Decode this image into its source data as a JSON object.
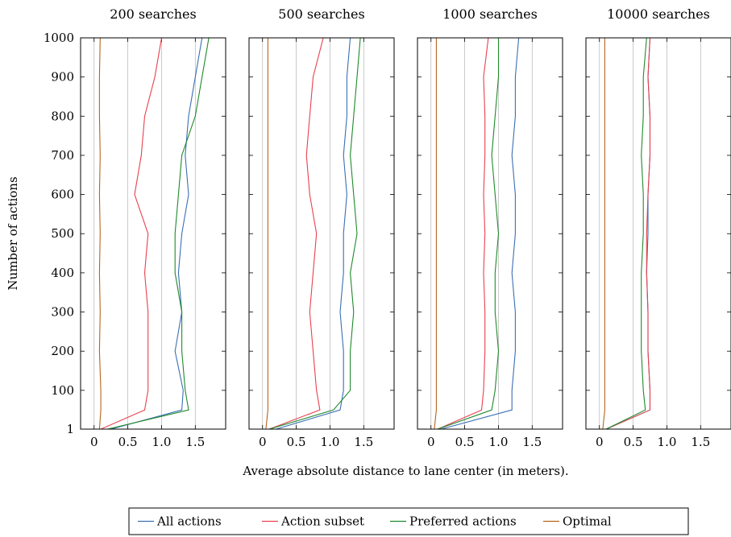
{
  "chart_data": {
    "type": "line",
    "xlabel": "Average absolute distance to lane center (in meters).",
    "ylabel": "Number of actions",
    "xlim": [
      -0.2,
      1.95
    ],
    "ylim": [
      1,
      1000
    ],
    "x_ticks": [
      0,
      0.5,
      1.0,
      1.5
    ],
    "x_tick_labels": [
      "0",
      "0.5",
      "1.0",
      "1.5"
    ],
    "y_ticks": [
      1,
      100,
      200,
      300,
      400,
      500,
      600,
      700,
      800,
      900,
      1000
    ],
    "y_tick_labels": [
      "1",
      "100",
      "200",
      "300",
      "400",
      "500",
      "600",
      "700",
      "800",
      "900",
      "1000"
    ],
    "grid": "vertical",
    "legend_position": "bottom-center",
    "series_info": [
      {
        "name": "All actions",
        "color": "#3b6fb5"
      },
      {
        "name": "Action subset",
        "color": "#e8414f"
      },
      {
        "name": "Preferred actions",
        "color": "#1f8a2c"
      },
      {
        "name": "Optimal",
        "color": "#b5651d"
      }
    ],
    "panels": [
      {
        "title": "200 searches",
        "series": [
          {
            "name": "All actions",
            "y": [
              1,
              50,
              100,
              200,
              300,
              400,
              500,
              600,
              700,
              800,
              900,
              1000
            ],
            "x": [
              0.25,
              1.3,
              1.32,
              1.2,
              1.3,
              1.25,
              1.3,
              1.4,
              1.35,
              1.4,
              1.5,
              1.6
            ]
          },
          {
            "name": "Action subset",
            "y": [
              1,
              50,
              100,
              200,
              300,
              400,
              500,
              600,
              700,
              800,
              900,
              1000
            ],
            "x": [
              0.1,
              0.75,
              0.8,
              0.8,
              0.8,
              0.75,
              0.8,
              0.6,
              0.7,
              0.75,
              0.9,
              1.0
            ]
          },
          {
            "name": "Preferred actions",
            "y": [
              1,
              50,
              100,
              200,
              300,
              400,
              500,
              600,
              700,
              800,
              900,
              1000
            ],
            "x": [
              0.2,
              1.4,
              1.35,
              1.3,
              1.3,
              1.2,
              1.2,
              1.25,
              1.3,
              1.5,
              1.6,
              1.7
            ]
          },
          {
            "name": "Optimal",
            "y": [
              1,
              50,
              100,
              200,
              300,
              400,
              500,
              600,
              700,
              800,
              900,
              1000
            ],
            "x": [
              0.08,
              0.1,
              0.1,
              0.08,
              0.09,
              0.08,
              0.09,
              0.08,
              0.09,
              0.08,
              0.08,
              0.09
            ]
          }
        ]
      },
      {
        "title": "500 searches",
        "series": [
          {
            "name": "All actions",
            "y": [
              1,
              50,
              100,
              200,
              300,
              400,
              500,
              600,
              700,
              800,
              900,
              1000
            ],
            "x": [
              0.2,
              1.15,
              1.2,
              1.2,
              1.15,
              1.2,
              1.2,
              1.25,
              1.2,
              1.25,
              1.25,
              1.3
            ]
          },
          {
            "name": "Action subset",
            "y": [
              1,
              50,
              100,
              200,
              300,
              400,
              500,
              600,
              700,
              800,
              900,
              1000
            ],
            "x": [
              0.1,
              0.85,
              0.8,
              0.75,
              0.7,
              0.75,
              0.8,
              0.7,
              0.65,
              0.7,
              0.75,
              0.9
            ]
          },
          {
            "name": "Preferred actions",
            "y": [
              1,
              50,
              100,
              200,
              300,
              400,
              500,
              600,
              700,
              800,
              900,
              1000
            ],
            "x": [
              0.1,
              1.05,
              1.3,
              1.3,
              1.35,
              1.3,
              1.4,
              1.35,
              1.3,
              1.35,
              1.4,
              1.45
            ]
          },
          {
            "name": "Optimal",
            "y": [
              1,
              50,
              100,
              200,
              300,
              400,
              500,
              600,
              700,
              800,
              900,
              1000
            ],
            "x": [
              0.05,
              0.08,
              0.08,
              0.08,
              0.08,
              0.08,
              0.08,
              0.08,
              0.08,
              0.08,
              0.08,
              0.08
            ]
          }
        ]
      },
      {
        "title": "1000 searches",
        "series": [
          {
            "name": "All actions",
            "y": [
              1,
              50,
              100,
              200,
              300,
              400,
              500,
              600,
              700,
              800,
              900,
              1000
            ],
            "x": [
              0.15,
              1.2,
              1.2,
              1.25,
              1.25,
              1.2,
              1.25,
              1.25,
              1.2,
              1.25,
              1.25,
              1.3
            ]
          },
          {
            "name": "Action subset",
            "y": [
              1,
              50,
              100,
              200,
              300,
              400,
              500,
              600,
              700,
              800,
              900,
              1000
            ],
            "x": [
              0.1,
              0.75,
              0.78,
              0.8,
              0.8,
              0.78,
              0.8,
              0.78,
              0.8,
              0.8,
              0.78,
              0.85
            ]
          },
          {
            "name": "Preferred actions",
            "y": [
              1,
              50,
              100,
              200,
              300,
              400,
              500,
              600,
              700,
              800,
              900,
              1000
            ],
            "x": [
              0.1,
              0.9,
              0.95,
              1.0,
              0.95,
              0.95,
              1.0,
              0.95,
              0.9,
              0.95,
              1.0,
              1.0
            ]
          },
          {
            "name": "Optimal",
            "y": [
              1,
              50,
              100,
              200,
              300,
              400,
              500,
              600,
              700,
              800,
              900,
              1000
            ],
            "x": [
              0.05,
              0.08,
              0.08,
              0.08,
              0.08,
              0.08,
              0.08,
              0.08,
              0.08,
              0.08,
              0.08,
              0.08
            ]
          }
        ]
      },
      {
        "title": "10000 searches",
        "series": [
          {
            "name": "All actions",
            "y": [
              1,
              50,
              100,
              200,
              300,
              400,
              500,
              600,
              700,
              800,
              900,
              1000
            ],
            "x": [
              0.1,
              0.75,
              0.75,
              0.72,
              0.72,
              0.7,
              0.72,
              0.72,
              0.75,
              0.75,
              0.72,
              0.75
            ]
          },
          {
            "name": "Action subset",
            "y": [
              1,
              50,
              100,
              200,
              300,
              400,
              500,
              600,
              700,
              800,
              900,
              1000
            ],
            "x": [
              0.1,
              0.75,
              0.75,
              0.72,
              0.72,
              0.7,
              0.7,
              0.72,
              0.75,
              0.75,
              0.72,
              0.75
            ]
          },
          {
            "name": "Preferred actions",
            "y": [
              1,
              50,
              100,
              200,
              300,
              400,
              500,
              600,
              700,
              800,
              900,
              1000
            ],
            "x": [
              0.1,
              0.68,
              0.65,
              0.62,
              0.62,
              0.62,
              0.65,
              0.65,
              0.62,
              0.65,
              0.65,
              0.7
            ]
          },
          {
            "name": "Optimal",
            "y": [
              1,
              50,
              100,
              200,
              300,
              400,
              500,
              600,
              700,
              800,
              900,
              1000
            ],
            "x": [
              0.05,
              0.08,
              0.08,
              0.08,
              0.08,
              0.08,
              0.08,
              0.08,
              0.08,
              0.08,
              0.08,
              0.08
            ]
          }
        ]
      }
    ]
  }
}
